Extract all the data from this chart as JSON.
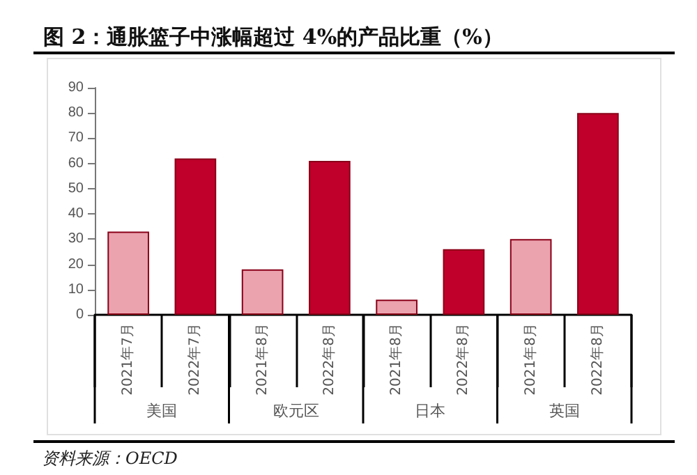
{
  "chart_data": {
    "type": "bar",
    "title": "图 2：通胀篮子中涨幅超过 4%的产品比重（%）",
    "categories": [
      "2021年7月",
      "2022年7月",
      "2021年8月",
      "2022年8月",
      "2021年8月",
      "2022年8月",
      "2021年8月",
      "2022年8月"
    ],
    "values": [
      33,
      62,
      18,
      61,
      6,
      26,
      30,
      80
    ],
    "colors": [
      "#eba3ae",
      "#c0002a",
      "#eba3ae",
      "#c0002a",
      "#eba3ae",
      "#c0002a",
      "#eba3ae",
      "#c0002a"
    ],
    "ylim": [
      0,
      90
    ],
    "yticks": [
      0,
      10,
      20,
      30,
      40,
      50,
      60,
      70,
      80,
      90
    ],
    "grid": false,
    "annotations": [
      "美国",
      "欧元区",
      "日本",
      "英国",
      "资料来源：OECD"
    ]
  }
}
